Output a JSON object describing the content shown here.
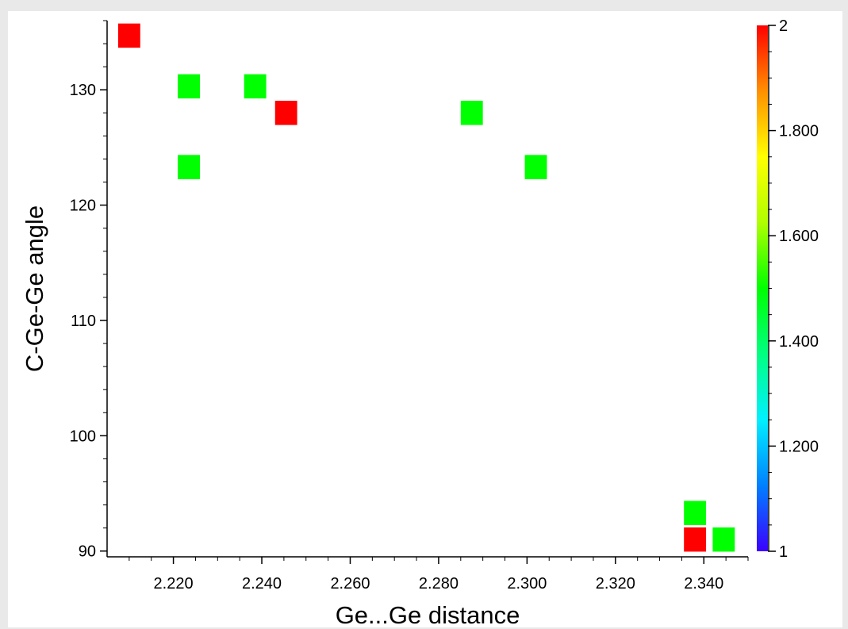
{
  "chart_data": {
    "type": "heatmap",
    "xlabel": "Ge...Ge distance",
    "ylabel": "C-Ge-Ge angle",
    "xlim": [
      2.205,
      2.35
    ],
    "ylim": [
      89.5,
      136
    ],
    "x_ticks": [
      "2.220",
      "2.240",
      "2.260",
      "2.280",
      "2.300",
      "2.320",
      "2.340"
    ],
    "x_tick_values": [
      2.22,
      2.24,
      2.26,
      2.28,
      2.3,
      2.32,
      2.34
    ],
    "y_ticks": [
      "90",
      "100",
      "110",
      "120",
      "130"
    ],
    "y_tick_values": [
      90,
      100,
      110,
      120,
      130
    ],
    "cell_width": 0.005,
    "cell_height": 2.1,
    "cells": [
      {
        "x": 2.21,
        "y": 134.7,
        "value": 2
      },
      {
        "x": 2.2235,
        "y": 130.3,
        "value": 1.5
      },
      {
        "x": 2.2385,
        "y": 130.3,
        "value": 1.5
      },
      {
        "x": 2.2455,
        "y": 128.0,
        "value": 2
      },
      {
        "x": 2.2235,
        "y": 123.3,
        "value": 1.5
      },
      {
        "x": 2.2875,
        "y": 128.0,
        "value": 1.5
      },
      {
        "x": 2.302,
        "y": 123.3,
        "value": 1.5
      },
      {
        "x": 2.338,
        "y": 93.3,
        "value": 1.5
      },
      {
        "x": 2.338,
        "y": 91.0,
        "value": 2
      },
      {
        "x": 2.3445,
        "y": 91.0,
        "value": 1.5
      }
    ],
    "colorbar": {
      "min": 1,
      "max": 2,
      "ticks": [
        "1",
        "1.200",
        "1.400",
        "1.600",
        "1.800",
        "2"
      ],
      "tick_values": [
        1,
        1.2,
        1.4,
        1.6,
        1.8,
        2
      ],
      "colors": [
        "#3b00ff",
        "#0080ff",
        "#00f0ff",
        "#00ff80",
        "#00ff00",
        "#b0ff00",
        "#ffff00",
        "#ff9000",
        "#ff0000"
      ]
    },
    "legend": "colorbar-right",
    "grid": false
  }
}
